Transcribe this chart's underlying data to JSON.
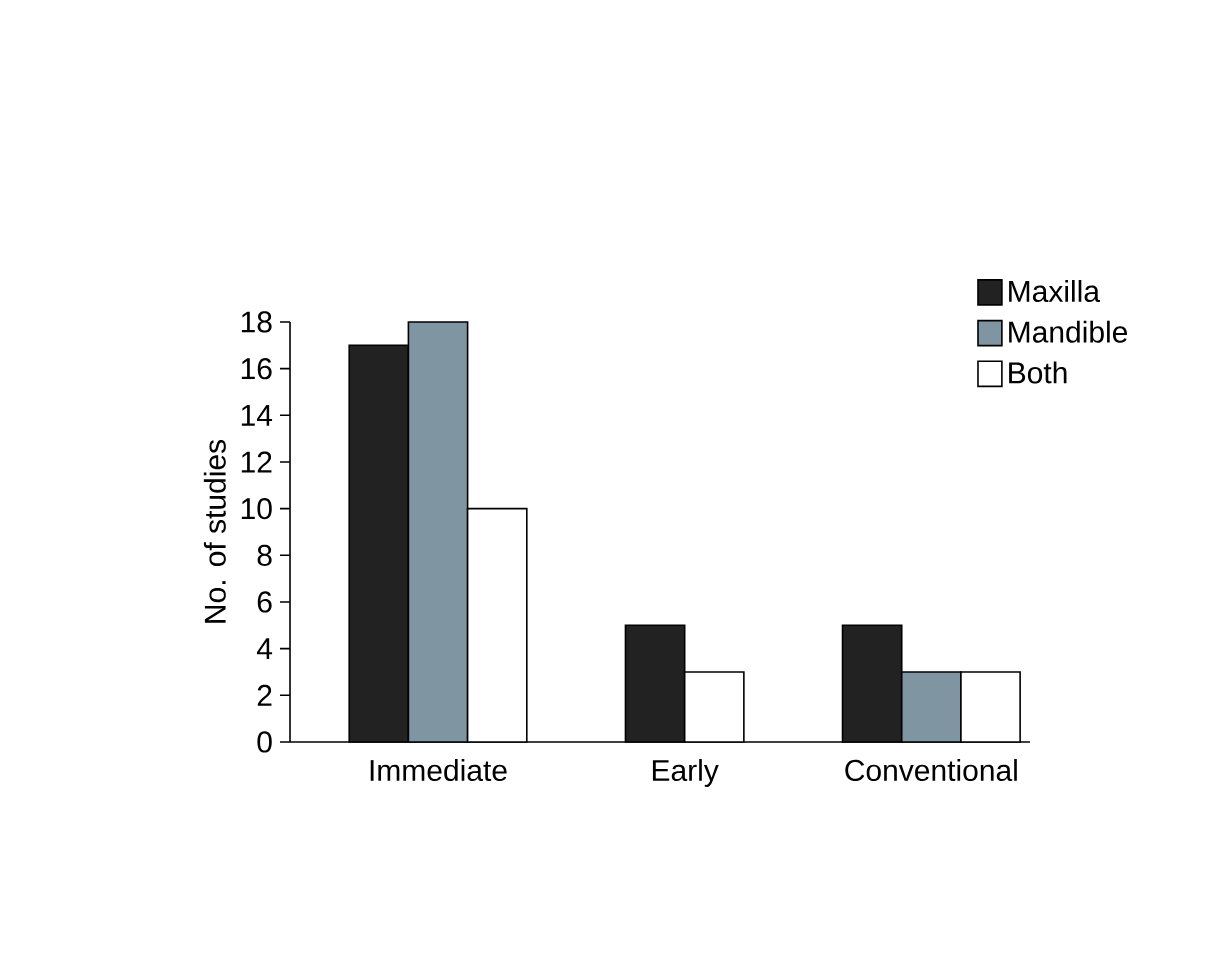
{
  "chart_data": {
    "type": "bar",
    "ylabel": "No. of studies",
    "categories": [
      "Immediate",
      "Early",
      "Conventional"
    ],
    "series": [
      {
        "name": "Maxilla",
        "color": "#222222",
        "values": [
          17,
          5,
          5
        ]
      },
      {
        "name": "Mandible",
        "color": "#7f95a1",
        "values": [
          18,
          null,
          3
        ]
      },
      {
        "name": "Both",
        "color": "#ffffff",
        "values": [
          10,
          3,
          3
        ]
      }
    ],
    "ylim": [
      0,
      18
    ],
    "yticks": [
      0,
      2,
      4,
      6,
      8,
      10,
      12,
      14,
      16,
      18
    ],
    "legend": "top right",
    "grid": false
  }
}
